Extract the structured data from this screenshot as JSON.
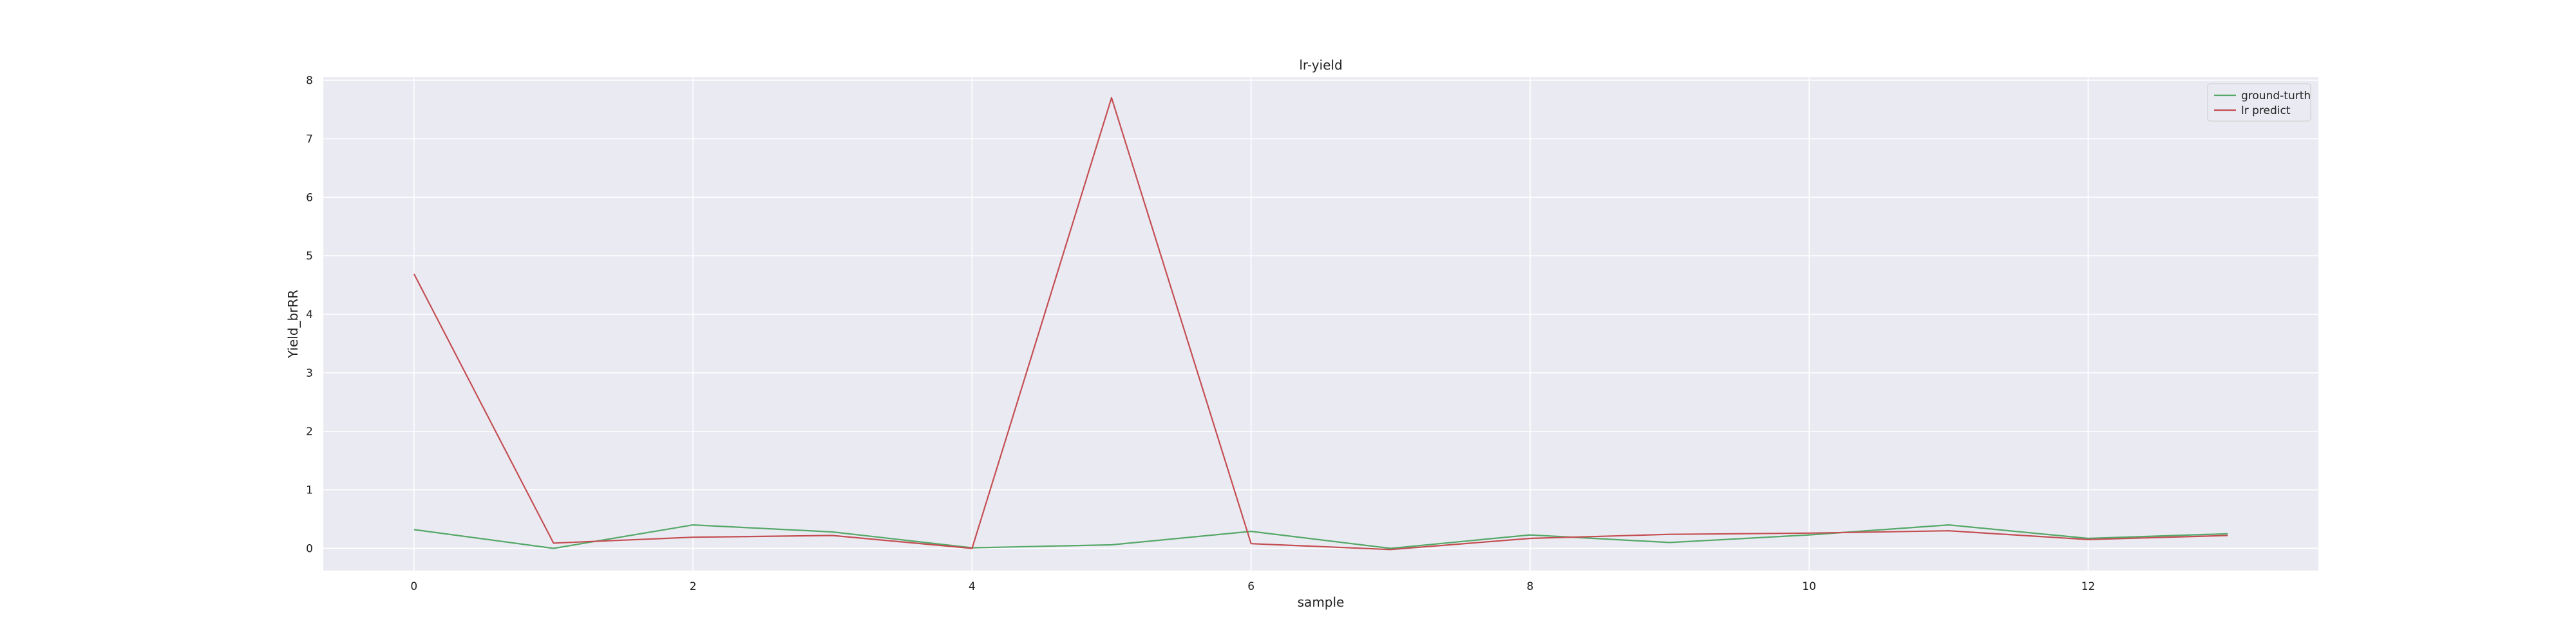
{
  "chart_data": {
    "type": "line",
    "title": "lr-yield",
    "xlabel": "sample",
    "ylabel": "Yield_brRR",
    "x": [
      0,
      1,
      2,
      3,
      4,
      5,
      6,
      7,
      8,
      9,
      10,
      11,
      12,
      13
    ],
    "xlim": [
      -0.65,
      13.65
    ],
    "ylim": [
      -0.38,
      8.05
    ],
    "x_ticks": [
      0,
      2,
      4,
      6,
      8,
      10,
      12
    ],
    "y_ticks": [
      0,
      1,
      2,
      3,
      4,
      5,
      6,
      7,
      8
    ],
    "grid": true,
    "legend_position": "top-right",
    "series": [
      {
        "name": "ground-turth",
        "color": "#55a868",
        "values": [
          0.32,
          0.0,
          0.4,
          0.28,
          0.01,
          0.06,
          0.29,
          0.0,
          0.23,
          0.1,
          0.23,
          0.4,
          0.17,
          0.25
        ]
      },
      {
        "name": "lr predict",
        "color": "#c44e52",
        "values": [
          4.69,
          0.09,
          0.19,
          0.22,
          0.0,
          7.7,
          0.08,
          -0.02,
          0.17,
          0.24,
          0.26,
          0.3,
          0.15,
          0.22
        ]
      }
    ]
  },
  "colors": {
    "plot_background": "#eaeaf2",
    "grid": "#ffffff"
  }
}
